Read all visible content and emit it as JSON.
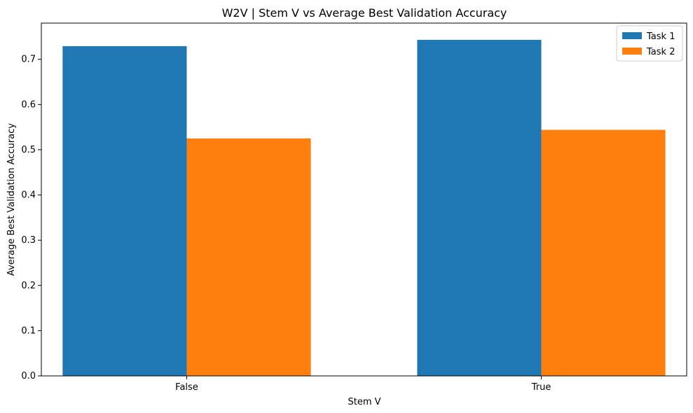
{
  "chart_data": {
    "type": "bar",
    "title": "W2V | Stem V vs Average Best Validation Accuracy",
    "xlabel": "Stem V",
    "ylabel": "Average Best Validation Accuracy",
    "categories": [
      "False",
      "True"
    ],
    "series": [
      {
        "name": "Task 1",
        "values": [
          0.729,
          0.743
        ],
        "color": "#1f77b4"
      },
      {
        "name": "Task 2",
        "values": [
          0.525,
          0.544
        ],
        "color": "#ff7f0e"
      }
    ],
    "ylim": [
      0,
      0.78
    ],
    "yticks": [
      "0.0",
      "0.1",
      "0.2",
      "0.3",
      "0.4",
      "0.5",
      "0.6",
      "0.7"
    ],
    "legend_position": "top-right",
    "grid": false
  }
}
